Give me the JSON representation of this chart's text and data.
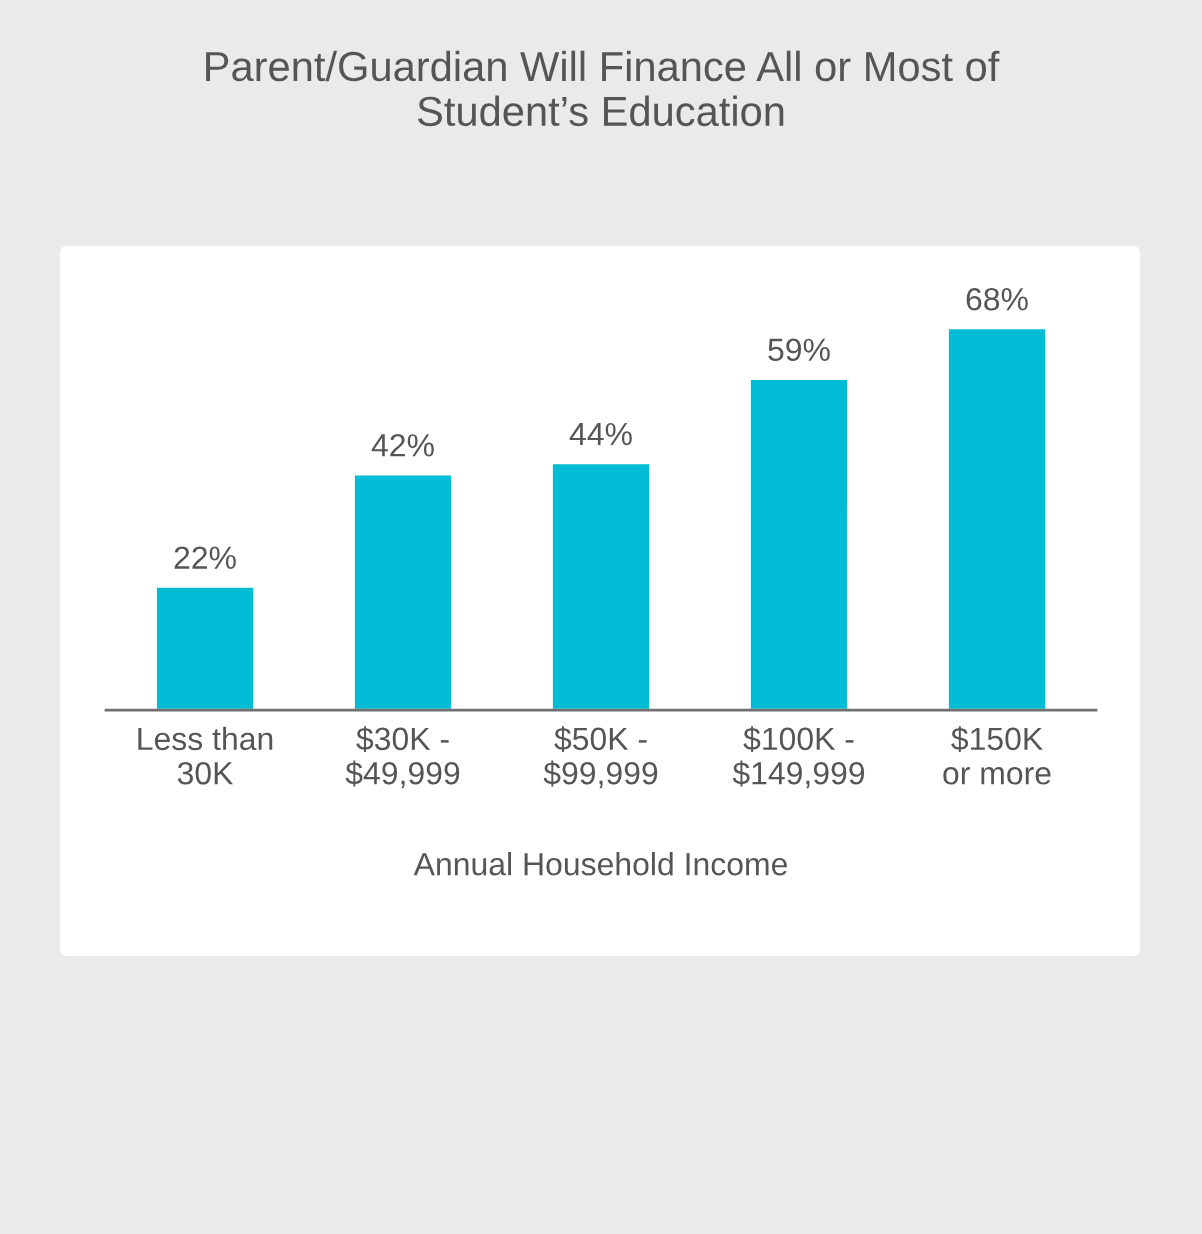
{
  "chart_data": {
    "type": "bar",
    "title": "Parent/Guardian Will Finance All or Most of\nStudent’s Education",
    "xlabel": "Annual Household Income",
    "categories": [
      "Less than\n30K",
      "$30K -\n$49,999",
      "$50K -\n$99,999",
      "$100K -\n$149,999",
      "$150K\nor more"
    ],
    "values": [
      22,
      42,
      44,
      59,
      68
    ],
    "value_labels": [
      "22%",
      "42%",
      "44%",
      "59%",
      "68%"
    ],
    "color": "#00bcd4",
    "tick_labels": "x"
  }
}
